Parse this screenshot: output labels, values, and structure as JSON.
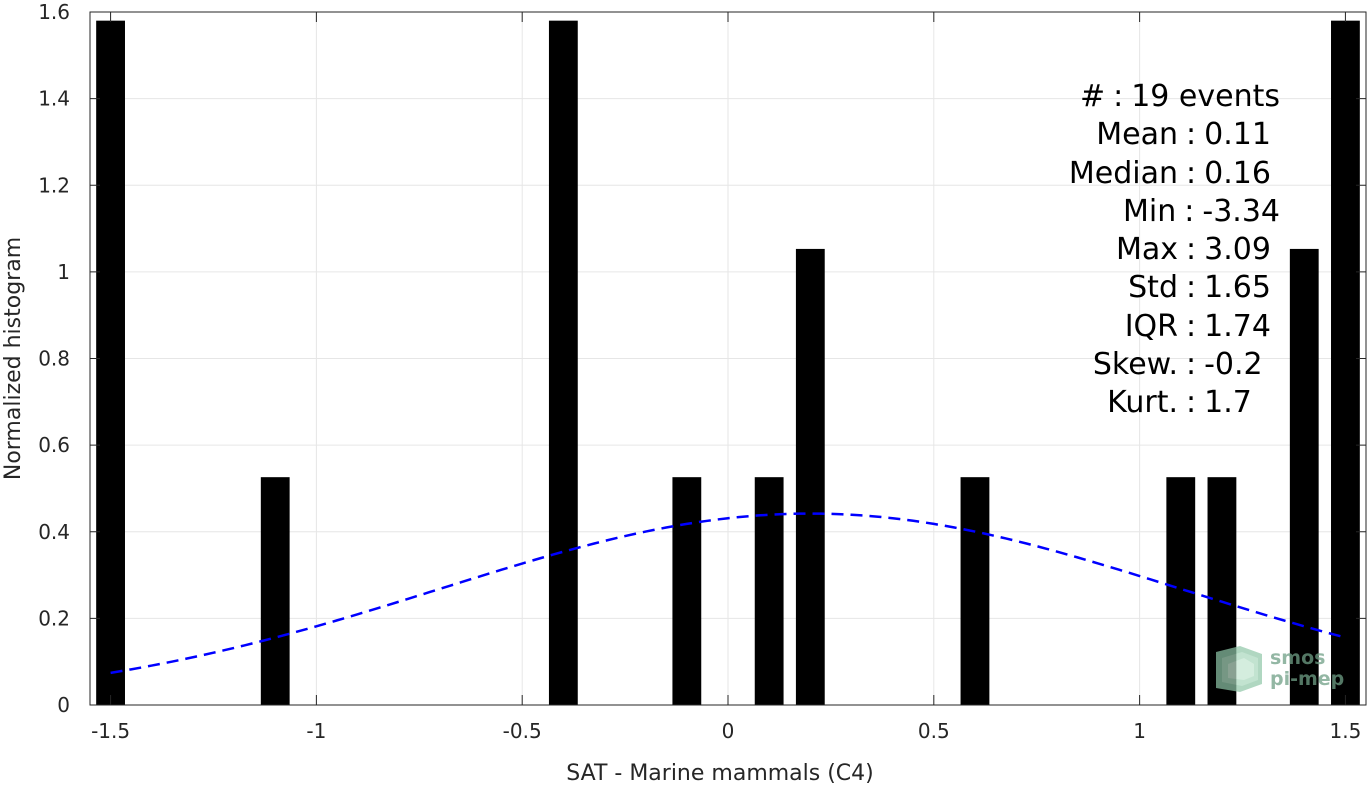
{
  "chart_data": {
    "type": "bar",
    "xlabel": "SAT - Marine mammals (C4)",
    "ylabel": "Normalized histogram",
    "xlim": [
      -1.55,
      1.55
    ],
    "ylim": [
      0,
      1.6
    ],
    "xticks": [
      -1.5,
      -1,
      -0.5,
      0,
      0.5,
      1,
      1.5
    ],
    "xtick_labels": [
      "-1.5",
      "-1",
      "-0.5",
      "0",
      "0.5",
      "1",
      "1.5"
    ],
    "yticks": [
      0,
      0.2,
      0.4,
      0.6,
      0.8,
      1,
      1.2,
      1.4,
      1.6
    ],
    "ytick_labels": [
      "0",
      "0.2",
      "0.4",
      "0.6",
      "0.8",
      "1",
      "1.2",
      "1.4",
      "1.6"
    ],
    "grid": true,
    "bar_width": 0.07,
    "bars": [
      {
        "x": -1.5,
        "value": 1.58
      },
      {
        "x": -1.1,
        "value": 0.526
      },
      {
        "x": -0.4,
        "value": 1.58
      },
      {
        "x": -0.1,
        "value": 0.526
      },
      {
        "x": 0.1,
        "value": 0.526
      },
      {
        "x": 0.2,
        "value": 1.053
      },
      {
        "x": 0.6,
        "value": 0.526
      },
      {
        "x": 1.1,
        "value": 0.526
      },
      {
        "x": 1.2,
        "value": 0.526
      },
      {
        "x": 1.4,
        "value": 1.053
      },
      {
        "x": 1.5,
        "value": 1.58
      }
    ],
    "fit_curve": {
      "type": "normal",
      "mean": 0.2,
      "std": 0.9,
      "amplitude": 0.442,
      "x_range": [
        -1.5,
        1.5
      ],
      "color": "#0000ff",
      "style": "dashed"
    },
    "bar_color": "#000000"
  },
  "stats": [
    {
      "key": "#",
      "value": "19 events"
    },
    {
      "key": "Mean",
      "value": "0.11"
    },
    {
      "key": "Median",
      "value": "0.16"
    },
    {
      "key": "Min",
      "value": "-3.34"
    },
    {
      "key": "Max",
      "value": "3.09"
    },
    {
      "key": "Std",
      "value": "1.65"
    },
    {
      "key": "IQR",
      "value": "1.74"
    },
    {
      "key": "Skew.",
      "value": "-0.2"
    },
    {
      "key": "Kurt.",
      "value": "1.7"
    }
  ],
  "logo": {
    "line1": "smos",
    "line2": "pi-mep",
    "color": "#6f9f86"
  }
}
